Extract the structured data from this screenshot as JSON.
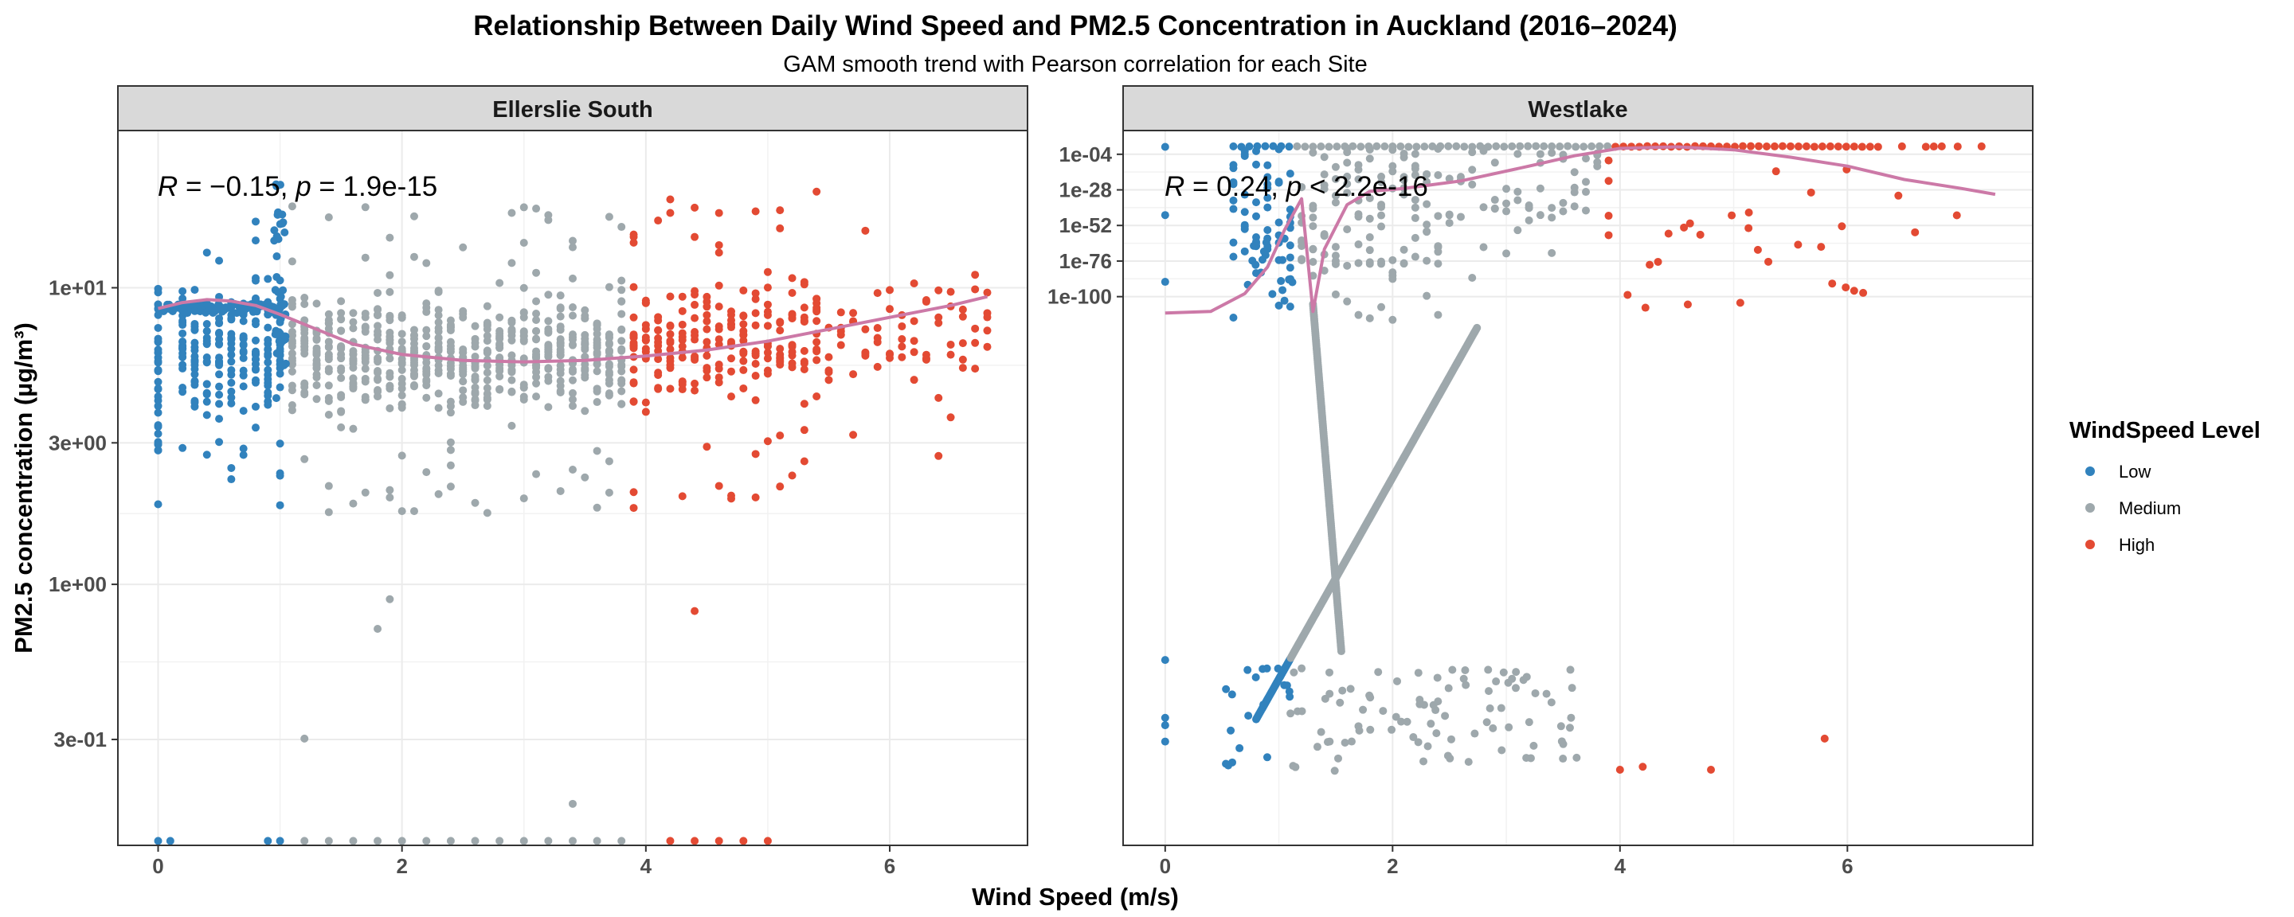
{
  "chart_data": {
    "type": "scatter",
    "title": "Relationship Between Daily Wind Speed and  PM2.5  Concentration in Auckland (2016–2024)",
    "subtitle": "GAM smooth trend with Pearson correlation for each Site",
    "xlabel": "Wind Speed (m/s)",
    "ylabel": "PM2.5  concentration (µg/m³)",
    "legend": {
      "title": "WindSpeed Level",
      "position": "right",
      "entries": [
        {
          "name": "Low",
          "color": "#3182bd"
        },
        {
          "name": "Medium",
          "color": "#9ea8ac"
        },
        {
          "name": "High",
          "color": "#e34a33"
        }
      ]
    },
    "smooth_color": "#cc79a7",
    "grid": true,
    "panels": [
      {
        "site": "Ellerslie South",
        "stat": {
          "prefix": "R = −0.15, ",
          "p_symbol": "p",
          "suffix": " = 1.9e-15"
        },
        "x_ticks": [
          "0",
          "2",
          "4",
          "6"
        ],
        "x_tick_values": [
          0,
          2,
          4,
          6
        ],
        "xlim": [
          -0.33,
          7.13
        ],
        "y_scale": "log10",
        "ylim_log10": [
          -0.88,
          1.53
        ],
        "y_ticks": [
          "3e-01",
          "1e+00",
          "3e+00",
          "1e+01"
        ],
        "y_tick_log10": [
          -0.5229,
          0,
          0.4771,
          1
        ],
        "smooth": [
          [
            0,
            0.93
          ],
          [
            0.2,
            0.95
          ],
          [
            0.4,
            0.96
          ],
          [
            0.6,
            0.955
          ],
          [
            0.8,
            0.94
          ],
          [
            1.0,
            0.91
          ],
          [
            1.3,
            0.86
          ],
          [
            1.6,
            0.81
          ],
          [
            2.0,
            0.775
          ],
          [
            2.5,
            0.755
          ],
          [
            3.0,
            0.75
          ],
          [
            3.5,
            0.755
          ],
          [
            4.0,
            0.77
          ],
          [
            4.5,
            0.79
          ],
          [
            5.0,
            0.82
          ],
          [
            5.5,
            0.86
          ],
          [
            6.0,
            0.9
          ],
          [
            6.5,
            0.94
          ],
          [
            6.8,
            0.97
          ]
        ]
      },
      {
        "site": "Westlake",
        "stat": {
          "prefix": "R = 0.24, ",
          "p_symbol": "p",
          "suffix": " < 2.2e-16"
        },
        "x_ticks": [
          "0",
          "2",
          "4",
          "6"
        ],
        "x_tick_values": [
          0,
          2,
          4,
          6
        ],
        "xlim": [
          -0.37,
          7.63
        ],
        "y_scale": "log10",
        "ylim_log10": [
          -470,
          12
        ],
        "y_ticks": [
          "1e-100",
          "1e-76",
          "1e-52",
          "1e-28",
          "1e-04"
        ],
        "y_tick_log10": [
          -100,
          -76,
          -52,
          -28,
          -4
        ],
        "smooth": [
          [
            0,
            -111
          ],
          [
            0.4,
            -110
          ],
          [
            0.7,
            -98
          ],
          [
            0.9,
            -80
          ],
          [
            1.05,
            -55
          ],
          [
            1.2,
            -34
          ],
          [
            1.3,
            -110
          ],
          [
            1.4,
            -68
          ],
          [
            1.6,
            -38
          ],
          [
            1.8,
            -29
          ],
          [
            2.1,
            -27
          ],
          [
            2.6,
            -22
          ],
          [
            3.2,
            -12
          ],
          [
            3.6,
            -5
          ],
          [
            4.0,
            0
          ],
          [
            4.5,
            1
          ],
          [
            5.0,
            -1
          ],
          [
            5.5,
            -6
          ],
          [
            6.0,
            -12
          ],
          [
            6.5,
            -21
          ],
          [
            7.0,
            -27
          ],
          [
            7.3,
            -31
          ]
        ]
      }
    ]
  }
}
